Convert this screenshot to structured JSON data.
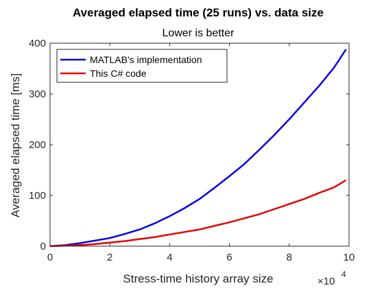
{
  "chart_data": {
    "type": "line",
    "title": "Averaged elapsed time (25 runs) vs. data size",
    "subtitle": "Lower is better",
    "xlabel": "Stress-time history array size",
    "ylabel": "Averaged elapsed time [ms]",
    "x_multiplier": "×10",
    "x_multiplier_exp": "4",
    "xlim": [
      0,
      10
    ],
    "ylim": [
      0,
      400
    ],
    "xticks": [
      0,
      2,
      4,
      6,
      8,
      10
    ],
    "yticks": [
      0,
      100,
      200,
      300,
      400
    ],
    "grid": false,
    "legend_placement": "top-left",
    "series": [
      {
        "name": "MATLAB's implementation",
        "color": "#0000e6",
        "x": [
          0,
          0.5,
          1,
          1.5,
          2,
          2.5,
          3,
          3.5,
          4,
          4.5,
          5,
          5.5,
          6,
          6.5,
          7,
          7.5,
          8,
          8.5,
          9,
          9.5,
          9.9
        ],
        "values": [
          0,
          2,
          6,
          11,
          16,
          24,
          33,
          45,
          59,
          75,
          93,
          115,
          138,
          162,
          190,
          219,
          250,
          283,
          316,
          352,
          388
        ]
      },
      {
        "name": "This C# code",
        "color": "#e60000",
        "x": [
          0,
          0.5,
          1,
          1.5,
          2,
          2.5,
          3,
          3.5,
          4,
          4.5,
          5,
          5.5,
          6,
          6.5,
          7,
          7.5,
          8,
          8.5,
          9,
          9.5,
          9.9
        ],
        "values": [
          0,
          1,
          2,
          4,
          7,
          10,
          14,
          18,
          23,
          28,
          33,
          40,
          47,
          55,
          63,
          73,
          83,
          93,
          105,
          116,
          130
        ]
      }
    ]
  }
}
